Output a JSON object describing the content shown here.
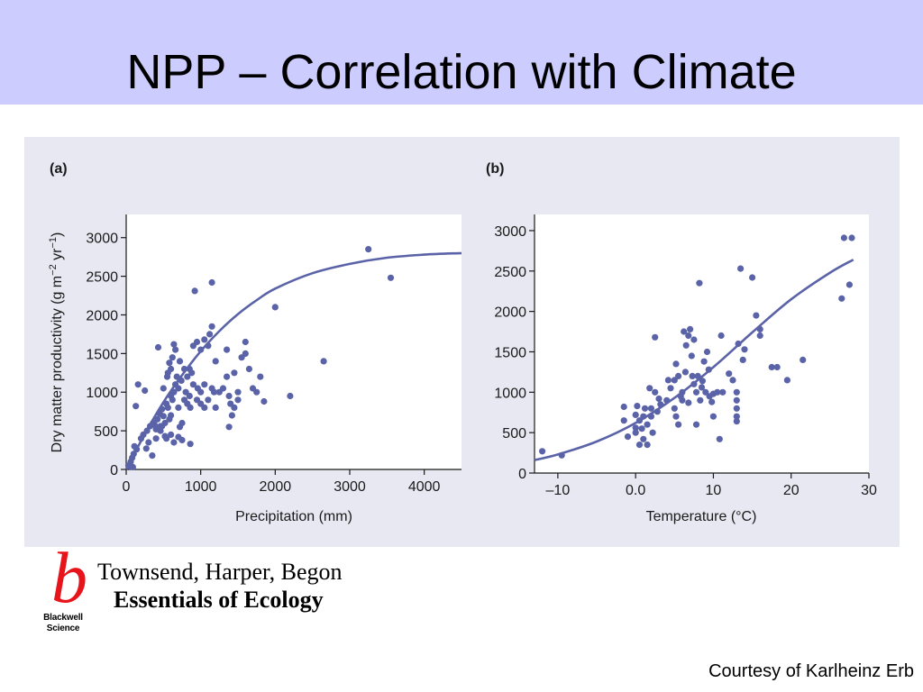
{
  "slide": {
    "title": "NPP – Correlation with Climate",
    "courtesy": "Courtesy of Karlheinz Erb"
  },
  "book": {
    "logo_letter": "b",
    "publisher_line1": "Blackwell",
    "publisher_line2": "Science",
    "authors": "Townsend, Harper, Begon",
    "title": "Essentials of Ecology",
    "logo_color": "#e8141c"
  },
  "colors": {
    "title_band": "#ccccff",
    "panel_background": "#e7e8f2",
    "series": "#5b63a8"
  },
  "chart_data": [
    {
      "type": "scatter",
      "panel_label": "(a)",
      "xlabel": "Precipitation (mm)",
      "ylabel_main": "Dry matter productivity (g m",
      "ylabel_sup1": "−2",
      "ylabel_mid": " yr",
      "ylabel_sup2": "−1",
      "ylabel_end": ")",
      "xlim": [
        0,
        4500
      ],
      "ylim": [
        0,
        3300
      ],
      "xticks": [
        0,
        1000,
        2000,
        3000,
        4000
      ],
      "yticks": [
        0,
        500,
        1000,
        1500,
        2000,
        2500,
        3000
      ],
      "grid": false,
      "points": [
        [
          30,
          50
        ],
        [
          60,
          100
        ],
        [
          80,
          150
        ],
        [
          110,
          300
        ],
        [
          100,
          200
        ],
        [
          140,
          260
        ],
        [
          50,
          40
        ],
        [
          90,
          30
        ],
        [
          130,
          820
        ],
        [
          160,
          1100
        ],
        [
          250,
          1020
        ],
        [
          200,
          400
        ],
        [
          230,
          450
        ],
        [
          280,
          500
        ],
        [
          320,
          560
        ],
        [
          300,
          350
        ],
        [
          350,
          180
        ],
        [
          270,
          270
        ],
        [
          360,
          600
        ],
        [
          400,
          520
        ],
        [
          420,
          650
        ],
        [
          450,
          720
        ],
        [
          480,
          780
        ],
        [
          500,
          690
        ],
        [
          460,
          560
        ],
        [
          520,
          600
        ],
        [
          540,
          850
        ],
        [
          560,
          800
        ],
        [
          580,
          650
        ],
        [
          600,
          700
        ],
        [
          620,
          900
        ],
        [
          640,
          1000
        ],
        [
          660,
          1100
        ],
        [
          500,
          1050
        ],
        [
          550,
          1200
        ],
        [
          600,
          1300
        ],
        [
          620,
          1450
        ],
        [
          660,
          1550
        ],
        [
          640,
          1620
        ],
        [
          560,
          1250
        ],
        [
          580,
          1380
        ],
        [
          520,
          430
        ],
        [
          480,
          560
        ],
        [
          400,
          400
        ],
        [
          380,
          580
        ],
        [
          460,
          500
        ],
        [
          540,
          400
        ],
        [
          600,
          450
        ],
        [
          640,
          350
        ],
        [
          700,
          420
        ],
        [
          720,
          550
        ],
        [
          750,
          380
        ],
        [
          700,
          800
        ],
        [
          780,
          900
        ],
        [
          800,
          1000
        ],
        [
          820,
          1200
        ],
        [
          850,
          1300
        ],
        [
          880,
          1250
        ],
        [
          900,
          1600
        ],
        [
          950,
          1650
        ],
        [
          1000,
          1550
        ],
        [
          1050,
          1680
        ],
        [
          920,
          2310
        ],
        [
          1150,
          2420
        ],
        [
          1100,
          1600
        ],
        [
          1120,
          1750
        ],
        [
          1150,
          1850
        ],
        [
          1200,
          1400
        ],
        [
          1000,
          1000
        ],
        [
          1050,
          1100
        ],
        [
          1100,
          900
        ],
        [
          1150,
          1050
        ],
        [
          1200,
          800
        ],
        [
          1250,
          1000
        ],
        [
          950,
          900
        ],
        [
          900,
          1100
        ],
        [
          850,
          950
        ],
        [
          1000,
          850
        ],
        [
          1050,
          800
        ],
        [
          700,
          1050
        ],
        [
          740,
          1150
        ],
        [
          780,
          1300
        ],
        [
          680,
          1200
        ],
        [
          720,
          1400
        ],
        [
          820,
          850
        ],
        [
          860,
          800
        ],
        [
          960,
          1050
        ],
        [
          1180,
          1000
        ],
        [
          1300,
          1050
        ],
        [
          1350,
          1200
        ],
        [
          1400,
          850
        ],
        [
          1380,
          950
        ],
        [
          1420,
          700
        ],
        [
          1450,
          800
        ],
        [
          1380,
          550
        ],
        [
          1350,
          1550
        ],
        [
          1500,
          900
        ],
        [
          1550,
          1450
        ],
        [
          1600,
          1500
        ],
        [
          1600,
          1650
        ],
        [
          1650,
          1300
        ],
        [
          1700,
          1050
        ],
        [
          1750,
          1000
        ],
        [
          1800,
          1200
        ],
        [
          1850,
          880
        ],
        [
          2000,
          2100
        ],
        [
          2200,
          950
        ],
        [
          2650,
          1400
        ],
        [
          3250,
          2850
        ],
        [
          3550,
          2480
        ],
        [
          1500,
          1000
        ],
        [
          1450,
          1250
        ],
        [
          430,
          1580
        ],
        [
          860,
          330
        ],
        [
          600,
          950
        ],
        [
          750,
          600
        ]
      ],
      "fit": [
        [
          0,
          0
        ],
        [
          250,
          460
        ],
        [
          500,
          870
        ],
        [
          750,
          1220
        ],
        [
          1000,
          1530
        ],
        [
          1250,
          1790
        ],
        [
          1500,
          2010
        ],
        [
          1750,
          2190
        ],
        [
          2000,
          2340
        ],
        [
          2500,
          2540
        ],
        [
          3000,
          2660
        ],
        [
          3500,
          2740
        ],
        [
          4000,
          2780
        ],
        [
          4500,
          2800
        ]
      ]
    },
    {
      "type": "scatter",
      "panel_label": "(b)",
      "xlabel": "Temperature (°C)",
      "xlim": [
        -13,
        30
      ],
      "ylim": [
        0,
        3200
      ],
      "xticks": [
        -10,
        0,
        10,
        20,
        30
      ],
      "xtick_labels": [
        "–10",
        "0.0",
        "10",
        "20",
        "30"
      ],
      "yticks": [
        0,
        500,
        1000,
        1500,
        2000,
        2500,
        3000
      ],
      "grid": false,
      "points": [
        [
          -12,
          270
        ],
        [
          -9.5,
          220
        ],
        [
          -1.5,
          820
        ],
        [
          -1.5,
          650
        ],
        [
          -1,
          450
        ],
        [
          0,
          500
        ],
        [
          0,
          560
        ],
        [
          0,
          720
        ],
        [
          0.2,
          830
        ],
        [
          0.5,
          650
        ],
        [
          1,
          700
        ],
        [
          1,
          420
        ],
        [
          0.5,
          350
        ],
        [
          1.5,
          350
        ],
        [
          1.5,
          600
        ],
        [
          2,
          700
        ],
        [
          2,
          800
        ],
        [
          2.2,
          500
        ],
        [
          1.8,
          1050
        ],
        [
          2.5,
          1680
        ],
        [
          2.5,
          1000
        ],
        [
          3,
          920
        ],
        [
          4,
          900
        ],
        [
          4.5,
          1050
        ],
        [
          5,
          1150
        ],
        [
          5,
          800
        ],
        [
          5.2,
          700
        ],
        [
          5.5,
          600
        ],
        [
          5.5,
          1200
        ],
        [
          6,
          1000
        ],
        [
          6,
          900
        ],
        [
          6.2,
          1750
        ],
        [
          6.5,
          1580
        ],
        [
          6.8,
          1700
        ],
        [
          7,
          1780
        ],
        [
          7.2,
          1450
        ],
        [
          7.5,
          1650
        ],
        [
          7.5,
          1100
        ],
        [
          7.8,
          1000
        ],
        [
          8,
          1200
        ],
        [
          8.2,
          2350
        ],
        [
          8.3,
          900
        ],
        [
          8.5,
          1060
        ],
        [
          8.8,
          1380
        ],
        [
          9,
          1000
        ],
        [
          9.2,
          1500
        ],
        [
          9.5,
          950
        ],
        [
          10,
          980
        ],
        [
          10,
          700
        ],
        [
          10.5,
          1000
        ],
        [
          10.8,
          420
        ],
        [
          11,
          1700
        ],
        [
          12,
          1230
        ],
        [
          12.5,
          1150
        ],
        [
          13,
          1000
        ],
        [
          13,
          900
        ],
        [
          13,
          800
        ],
        [
          13,
          700
        ],
        [
          13,
          640
        ],
        [
          13.2,
          1600
        ],
        [
          13.5,
          2530
        ],
        [
          13.8,
          1400
        ],
        [
          14,
          1530
        ],
        [
          15,
          2420
        ],
        [
          15.5,
          1950
        ],
        [
          16,
          1780
        ],
        [
          16,
          1700
        ],
        [
          17.5,
          1310
        ],
        [
          18.2,
          1310
        ],
        [
          19.5,
          1150
        ],
        [
          21.5,
          1400
        ],
        [
          26.5,
          2160
        ],
        [
          26.8,
          2910
        ],
        [
          27.5,
          2330
        ],
        [
          27.8,
          2910
        ],
        [
          3.2,
          850
        ],
        [
          4.2,
          1150
        ],
        [
          6.4,
          1250
        ],
        [
          7.3,
          1200
        ],
        [
          8.6,
          1140
        ],
        [
          9.4,
          1280
        ],
        [
          5.8,
          950
        ],
        [
          1.2,
          800
        ],
        [
          0.8,
          550
        ],
        [
          2.8,
          760
        ],
        [
          6.8,
          870
        ],
        [
          7.8,
          600
        ],
        [
          5.2,
          1350
        ],
        [
          9.8,
          880
        ],
        [
          11.2,
          1000
        ]
      ],
      "fit": [
        [
          -13,
          160
        ],
        [
          -10,
          230
        ],
        [
          -5,
          390
        ],
        [
          0,
          620
        ],
        [
          5,
          930
        ],
        [
          10,
          1310
        ],
        [
          15,
          1740
        ],
        [
          20,
          2150
        ],
        [
          25,
          2480
        ],
        [
          28,
          2640
        ]
      ]
    }
  ]
}
